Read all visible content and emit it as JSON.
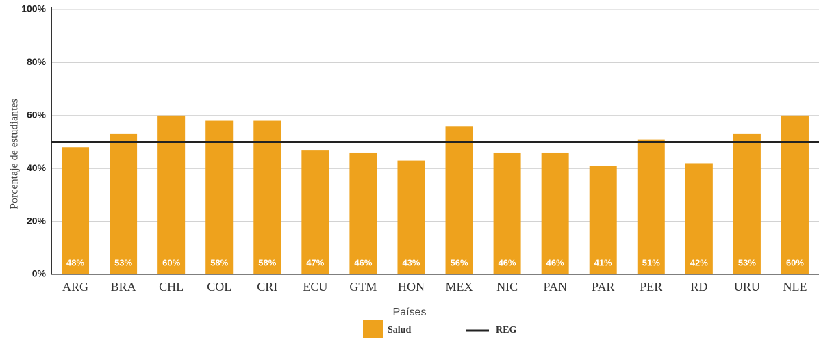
{
  "chart_data": {
    "type": "bar",
    "x_label": "Países",
    "y_label": "Porcentaje de estudiantes",
    "categories": [
      "ARG",
      "BRA",
      "CHL",
      "COL",
      "CRI",
      "ECU",
      "GTM",
      "HON",
      "MEX",
      "NIC",
      "PAN",
      "PAR",
      "PER",
      "RD",
      "URU",
      "NLE"
    ],
    "series": [
      {
        "name": "Salud",
        "color": "#eea21d",
        "values": [
          48,
          53,
          60,
          58,
          58,
          47,
          46,
          43,
          56,
          46,
          46,
          41,
          51,
          42,
          53,
          60
        ],
        "value_labels": [
          "48%",
          "53%",
          "60%",
          "58%",
          "58%",
          "47%",
          "46%",
          "43%",
          "56%",
          "46%",
          "46%",
          "41%",
          "51%",
          "42%",
          "53%",
          "60%"
        ]
      }
    ],
    "reference_line": {
      "name": "REG",
      "value": 50,
      "color": "#222222"
    },
    "ylim": [
      0,
      100
    ],
    "yticks": [
      {
        "value": 0,
        "label": "0%"
      },
      {
        "value": 20,
        "label": "20%"
      },
      {
        "value": 40,
        "label": "40%"
      },
      {
        "value": 60,
        "label": "60%"
      },
      {
        "value": 80,
        "label": "80%"
      },
      {
        "value": 100,
        "label": "100%"
      }
    ],
    "grid": true
  }
}
